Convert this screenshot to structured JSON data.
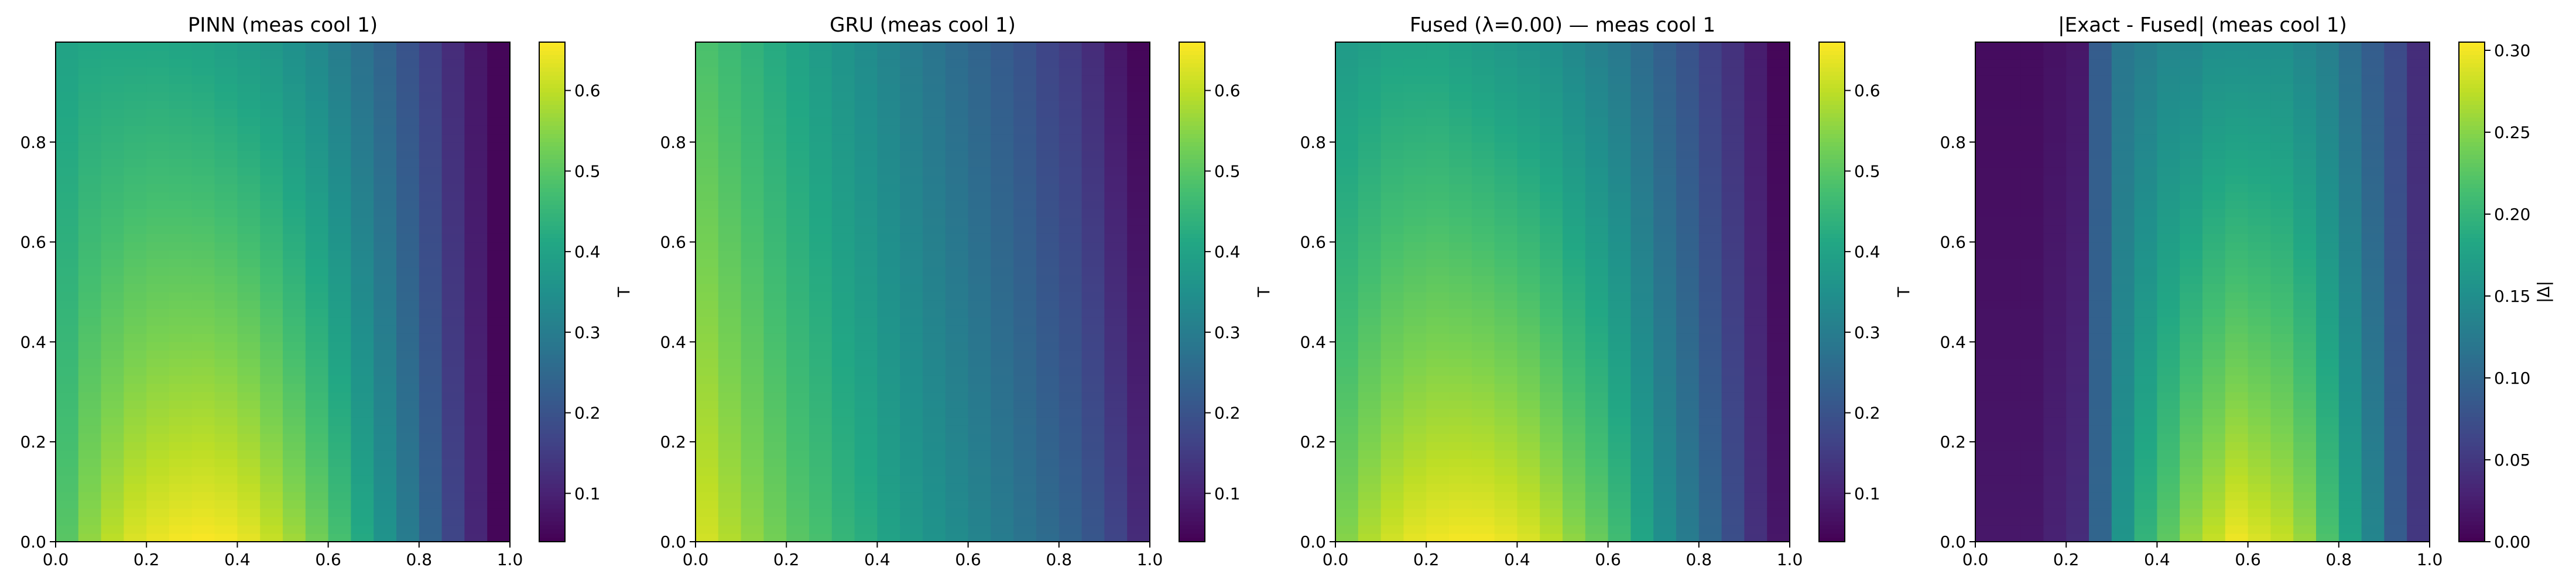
{
  "chart_data": [
    {
      "type": "heatmap",
      "title": "PINN (meas cool 1)",
      "xlim": [
        0.0,
        1.0
      ],
      "ylim": [
        0.0,
        1.0
      ],
      "x_ticks": [
        "0.0",
        "0.2",
        "0.4",
        "0.6",
        "0.8",
        "1.0"
      ],
      "y_ticks": [
        "0.0",
        "0.2",
        "0.4",
        "0.6",
        "0.8"
      ],
      "colorbar": {
        "label": "T",
        "range": [
          0.04,
          0.66
        ],
        "ticks": [
          "0.1",
          "0.2",
          "0.3",
          "0.4",
          "0.5",
          "0.6"
        ],
        "colormap": "viridis"
      },
      "x_columns": [
        0.025,
        0.075,
        0.125,
        0.175,
        0.225,
        0.275,
        0.325,
        0.375,
        0.425,
        0.475,
        0.525,
        0.575,
        0.625,
        0.675,
        0.725,
        0.775,
        0.825,
        0.875,
        0.925,
        0.975
      ],
      "value_at_bottom": [
        0.5,
        0.56,
        0.6,
        0.63,
        0.645,
        0.655,
        0.66,
        0.655,
        0.64,
        0.61,
        0.575,
        0.53,
        0.48,
        0.42,
        0.36,
        0.3,
        0.24,
        0.17,
        0.11,
        0.05
      ],
      "value_at_top": [
        0.4,
        0.41,
        0.41,
        0.41,
        0.41,
        0.405,
        0.4,
        0.39,
        0.38,
        0.37,
        0.35,
        0.33,
        0.3,
        0.27,
        0.24,
        0.2,
        0.16,
        0.12,
        0.08,
        0.05
      ]
    },
    {
      "type": "heatmap",
      "title": "GRU (meas cool 1)",
      "xlim": [
        0.0,
        1.0
      ],
      "ylim": [
        0.0,
        1.0
      ],
      "x_ticks": [
        "0.0",
        "0.2",
        "0.4",
        "0.6",
        "0.8",
        "1.0"
      ],
      "y_ticks": [
        "0.0",
        "0.2",
        "0.4",
        "0.6",
        "0.8"
      ],
      "colorbar": {
        "label": "T",
        "range": [
          0.04,
          0.66
        ],
        "ticks": [
          "0.1",
          "0.2",
          "0.3",
          "0.4",
          "0.5",
          "0.6"
        ],
        "colormap": "viridis"
      },
      "x_columns": [
        0.025,
        0.075,
        0.125,
        0.175,
        0.225,
        0.275,
        0.325,
        0.375,
        0.425,
        0.475,
        0.525,
        0.575,
        0.625,
        0.675,
        0.725,
        0.775,
        0.825,
        0.875,
        0.925,
        0.975
      ],
      "value_at_bottom": [
        0.62,
        0.59,
        0.56,
        0.53,
        0.5,
        0.48,
        0.45,
        0.43,
        0.4,
        0.38,
        0.36,
        0.34,
        0.32,
        0.3,
        0.28,
        0.26,
        0.24,
        0.21,
        0.17,
        0.12
      ],
      "value_at_top": [
        0.48,
        0.46,
        0.44,
        0.42,
        0.4,
        0.38,
        0.36,
        0.34,
        0.32,
        0.3,
        0.28,
        0.26,
        0.24,
        0.22,
        0.2,
        0.17,
        0.15,
        0.12,
        0.08,
        0.05
      ]
    },
    {
      "type": "heatmap",
      "title": "Fused (λ=0.00) — meas cool 1",
      "xlim": [
        0.0,
        1.0
      ],
      "ylim": [
        0.0,
        1.0
      ],
      "x_ticks": [
        "0.0",
        "0.2",
        "0.4",
        "0.6",
        "0.8",
        "1.0"
      ],
      "y_ticks": [
        "0.0",
        "0.2",
        "0.4",
        "0.6",
        "0.8"
      ],
      "colorbar": {
        "label": "T",
        "range": [
          0.04,
          0.66
        ],
        "ticks": [
          "0.1",
          "0.2",
          "0.3",
          "0.4",
          "0.5",
          "0.6"
        ],
        "colormap": "viridis"
      },
      "x_columns": [
        0.025,
        0.075,
        0.125,
        0.175,
        0.225,
        0.275,
        0.325,
        0.375,
        0.425,
        0.475,
        0.525,
        0.575,
        0.625,
        0.675,
        0.725,
        0.775,
        0.825,
        0.875,
        0.925,
        0.975
      ],
      "value_at_bottom": [
        0.55,
        0.59,
        0.62,
        0.64,
        0.65,
        0.655,
        0.655,
        0.645,
        0.63,
        0.6,
        0.56,
        0.52,
        0.47,
        0.41,
        0.35,
        0.3,
        0.25,
        0.19,
        0.13,
        0.08
      ],
      "value_at_top": [
        0.38,
        0.39,
        0.4,
        0.4,
        0.4,
        0.39,
        0.38,
        0.37,
        0.36,
        0.35,
        0.33,
        0.31,
        0.29,
        0.26,
        0.23,
        0.2,
        0.16,
        0.13,
        0.09,
        0.05
      ]
    },
    {
      "type": "heatmap",
      "title": "|Exact - Fused| (meas cool 1)",
      "xlim": [
        0.0,
        1.0
      ],
      "ylim": [
        0.0,
        1.0
      ],
      "x_ticks": [
        "0.0",
        "0.2",
        "0.4",
        "0.6",
        "0.8",
        "1.0"
      ],
      "y_ticks": [
        "0.0",
        "0.2",
        "0.4",
        "0.6",
        "0.8"
      ],
      "colorbar": {
        "label": "|Δ|",
        "range": [
          0.0,
          0.305
        ],
        "ticks": [
          "0.00",
          "0.05",
          "0.10",
          "0.15",
          "0.20",
          "0.25",
          "0.30"
        ],
        "colormap": "viridis"
      },
      "x_columns": [
        0.025,
        0.075,
        0.125,
        0.175,
        0.225,
        0.275,
        0.325,
        0.375,
        0.425,
        0.475,
        0.525,
        0.575,
        0.625,
        0.675,
        0.725,
        0.775,
        0.825,
        0.875,
        0.925,
        0.975
      ],
      "value_at_bottom": [
        0.02,
        0.02,
        0.02,
        0.03,
        0.04,
        0.1,
        0.16,
        0.2,
        0.23,
        0.26,
        0.28,
        0.3,
        0.29,
        0.28,
        0.26,
        0.22,
        0.18,
        0.14,
        0.09,
        0.05
      ],
      "value_at_top": [
        0.01,
        0.01,
        0.01,
        0.015,
        0.02,
        0.09,
        0.12,
        0.13,
        0.14,
        0.14,
        0.15,
        0.15,
        0.15,
        0.15,
        0.14,
        0.13,
        0.11,
        0.09,
        0.07,
        0.04
      ]
    }
  ]
}
